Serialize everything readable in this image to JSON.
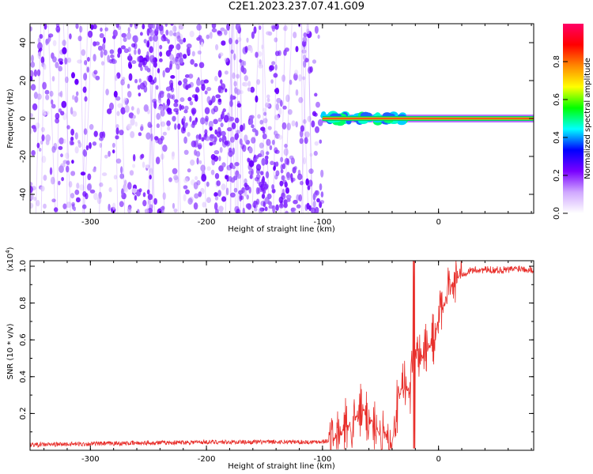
{
  "title": "C2E1.2023.237.07.41.G09",
  "colors": {
    "signal": "#e8302c",
    "noise_purple": "#7a1aff",
    "noise_light": "#d9b8ff"
  },
  "chart_data": [
    {
      "type": "heatmap",
      "xlabel": "Height of straight line (km)",
      "ylabel": "Frequency (Hz)",
      "xlim": [
        -352,
        82
      ],
      "ylim": [
        -50,
        50
      ],
      "xticks": [
        -300,
        -200,
        -100,
        0
      ],
      "xtick_labels": [
        "-300",
        "-200",
        "-100",
        "0"
      ],
      "yticks": [
        -40,
        -20,
        0,
        20,
        40
      ],
      "ytick_labels": [
        "-40",
        "-20",
        "0",
        "20",
        "40"
      ],
      "noise_region_x": [
        -352,
        -100
      ],
      "signal_line_y": 0,
      "colorbar": {
        "label": "Normalized spectral amplitude",
        "range": [
          0,
          1
        ],
        "ticks": [
          0.0,
          0.2,
          0.4,
          0.6,
          0.8
        ],
        "tick_labels": [
          "0.0",
          "0.2",
          "0.4",
          "0.6",
          "0.8"
        ],
        "stops": [
          "#ffffff",
          "#d0a8ff",
          "#7a00ff",
          "#0000ff",
          "#00ffff",
          "#00ff00",
          "#ffff00",
          "#ff8800",
          "#ff0000",
          "#ff0066"
        ]
      }
    },
    {
      "type": "line",
      "xlabel": "Height of straight line (km)",
      "ylabel": "SNR (10 * v/v)",
      "multiplier_label": "(x10",
      "multiplier_exp": "4",
      "xlim": [
        -352,
        82
      ],
      "ylim": [
        0,
        1.03
      ],
      "xticks": [
        -300,
        -200,
        -100,
        0
      ],
      "xtick_labels": [
        "-300",
        "-200",
        "-100",
        "0"
      ],
      "yticks": [
        0.2,
        0.4,
        0.6,
        0.8,
        1.0
      ],
      "ytick_labels": [
        "0.2",
        "0.4",
        "0.6",
        "0.8",
        "1.0"
      ],
      "series": [
        {
          "color": "#e8302c",
          "x": [
            -352,
            -300,
            -250,
            -200,
            -150,
            -110,
            -95,
            -85,
            -75,
            -65,
            -60,
            -55,
            -50,
            -45,
            -40,
            -35,
            -30,
            -25,
            -22,
            -20,
            -15,
            -10,
            -5,
            0,
            5,
            10,
            15,
            20,
            25,
            30,
            40,
            50,
            60,
            70,
            82
          ],
          "y": [
            0.03,
            0.035,
            0.04,
            0.045,
            0.045,
            0.045,
            0.05,
            0.08,
            0.15,
            0.22,
            0.18,
            0.12,
            0.1,
            0.08,
            0.05,
            0.25,
            0.38,
            0.3,
            0.5,
            0.55,
            0.5,
            0.55,
            0.58,
            0.7,
            0.8,
            0.88,
            0.93,
            0.96,
            0.97,
            0.98,
            0.98,
            0.98,
            0.98,
            0.99,
            0.98
          ]
        }
      ]
    }
  ]
}
